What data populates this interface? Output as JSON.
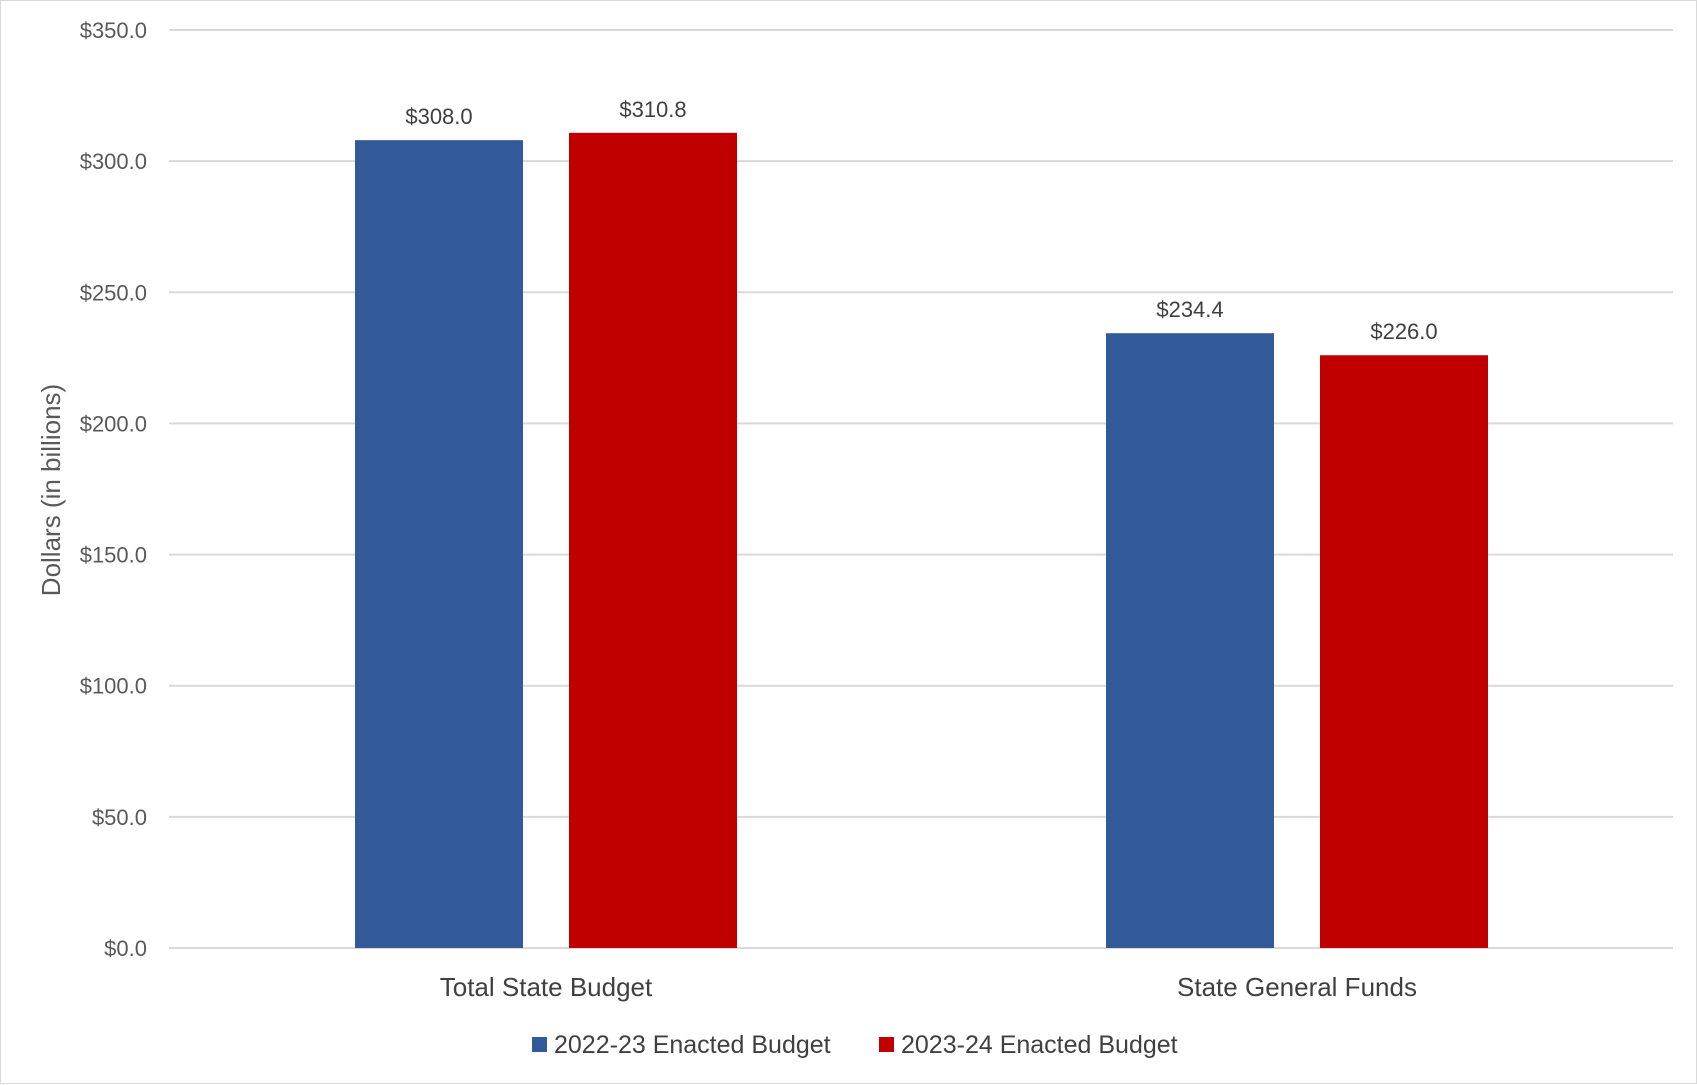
{
  "chart_data": {
    "type": "bar",
    "title": "",
    "xlabel": "",
    "ylabel": "Dollars (in billions)",
    "ylim": [
      0,
      350
    ],
    "yticks": [
      0,
      50,
      100,
      150,
      200,
      250,
      300,
      350
    ],
    "ytick_labels": [
      "$0.0",
      "$50.0",
      "$100.0",
      "$150.0",
      "$200.0",
      "$250.0",
      "$300.0",
      "$350.0"
    ],
    "categories": [
      "Total State Budget",
      "State General Funds"
    ],
    "series": [
      {
        "name": "2022-23 Enacted Budget",
        "color": "#325a99",
        "values": [
          308.0,
          234.4
        ],
        "labels": [
          "$308.0",
          "$234.4"
        ]
      },
      {
        "name": "2023-24 Enacted Budget",
        "color": "#c00000",
        "values": [
          310.8,
          226.0
        ],
        "labels": [
          "$310.8",
          "$226.0"
        ]
      }
    ],
    "grid": true,
    "legend_position": "bottom"
  }
}
